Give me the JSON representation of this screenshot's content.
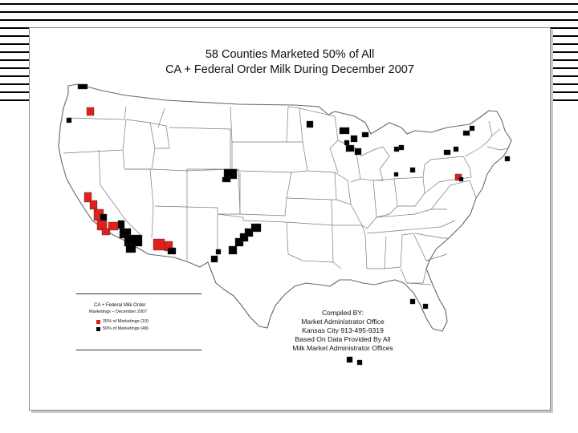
{
  "slide": {
    "title_line_1": "58 Counties Marketed 50% of All",
    "title_line_2": "CA + Federal Order Milk During December 2007"
  },
  "legend": {
    "heading_1": "CA + Federal Milk Order",
    "heading_2": "Marketings  –  December 2007",
    "items": [
      {
        "label": "25% of Marketings  (10)",
        "color": "#e0201b"
      },
      {
        "label": "50% of Marketings  (48)",
        "color": "#000000"
      }
    ]
  },
  "credit": {
    "line_1": "Compiled BY:",
    "line_2": "Market Administrator Office",
    "line_3": "Kansas City 913-495-9319",
    "line_4": "Based On Data Provided By All",
    "line_5": "Milk Market Administrator Offices"
  },
  "colors": {
    "top_25": "#e0201b",
    "top_50": "#000000",
    "state_fill": "#ffffff",
    "state_border": "#777777"
  }
}
